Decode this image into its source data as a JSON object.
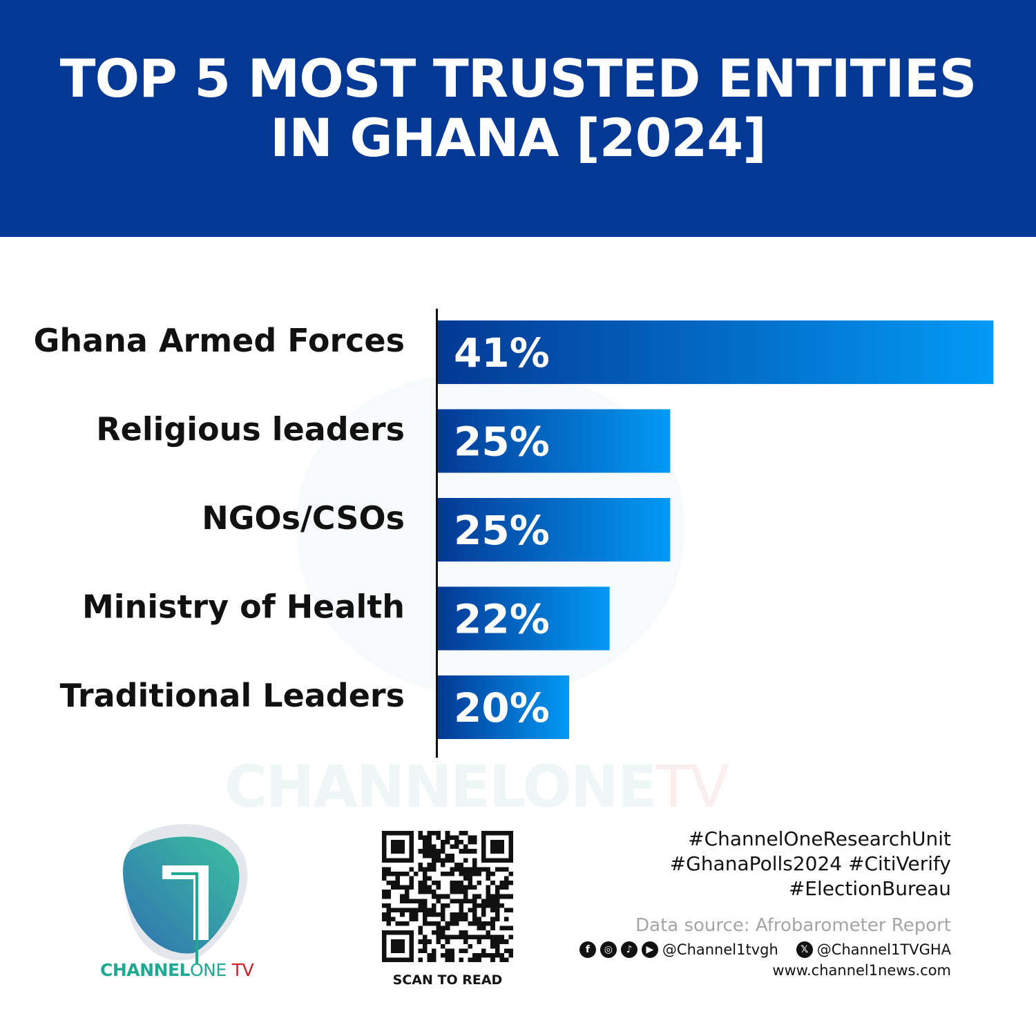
{
  "header": {
    "title_line1": "TOP 5 MOST TRUSTED ENTITIES",
    "title_line2": "IN GHANA [2024]"
  },
  "chart_data": {
    "type": "bar",
    "orientation": "horizontal",
    "title": "TOP 5 MOST TRUSTED ENTITIES IN GHANA [2024]",
    "categories": [
      "Ghana Armed Forces",
      "Religious leaders",
      "NGOs/CSOs",
      "Ministry of Health",
      "Traditional Leaders"
    ],
    "values": [
      41,
      25,
      25,
      22,
      20
    ],
    "value_labels": [
      "41%",
      "25%",
      "25%",
      "22%",
      "20%"
    ],
    "unit": "%",
    "grid": false,
    "legend": "none",
    "bar_gradient": [
      "#033994",
      "#029af5"
    ]
  },
  "watermark": {
    "brand": "CHANNELONE",
    "tv": "TV"
  },
  "logo": {
    "brand_bold": "CHANNEL",
    "brand_light": "ONE",
    "brand_tv": "TV",
    "colors": {
      "teal": "#1fa892",
      "red": "#c8202a"
    }
  },
  "qr": {
    "caption": "SCAN TO READ"
  },
  "footer": {
    "hashtags": [
      "#ChannelOneResearchUnit",
      "#GhanaPolls2024 #CitiVerify",
      "#ElectionBureau"
    ],
    "source": "Data source: Afrobarometer Report",
    "social_icons": [
      "facebook-icon",
      "instagram-icon",
      "tiktok-icon",
      "youtube-icon"
    ],
    "handle1": "@Channel1tvgh",
    "x_icon": "x-icon",
    "handle2": "@Channel1TVGHA",
    "website": "www.channel1news.com"
  },
  "colors": {
    "header_bg": "#033994"
  }
}
